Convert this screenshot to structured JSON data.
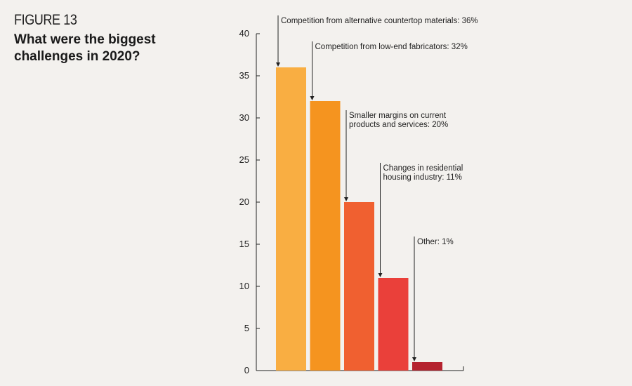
{
  "header": {
    "figure_label": "FIGURE 13",
    "title": "What were the biggest challenges in 2020?"
  },
  "chart_data": {
    "type": "bar",
    "categories": [
      "Competition from alternative countertop materials",
      "Competition from low-end fabricators",
      "Smaller margins on current products and services",
      "Changes in residential housing industry",
      "Other"
    ],
    "values": [
      36,
      32,
      20,
      11,
      1
    ],
    "annotations": [
      [
        "Competition from alternative countertop materials: 36%"
      ],
      [
        "Competition from low-end fabricators: 32%"
      ],
      [
        "Smaller margins on current",
        "products and services: 20%"
      ],
      [
        "Changes in residential",
        "housing industry: 11%"
      ],
      [
        "Other: 1%"
      ]
    ],
    "colors": [
      "#f9ae42",
      "#f5941f",
      "#f06030",
      "#ea403a",
      "#b5232f"
    ],
    "ylim": [
      0,
      40
    ],
    "yticks": [
      0,
      5,
      10,
      15,
      20,
      25,
      30,
      35,
      40
    ],
    "grid": false,
    "legend": "none"
  }
}
